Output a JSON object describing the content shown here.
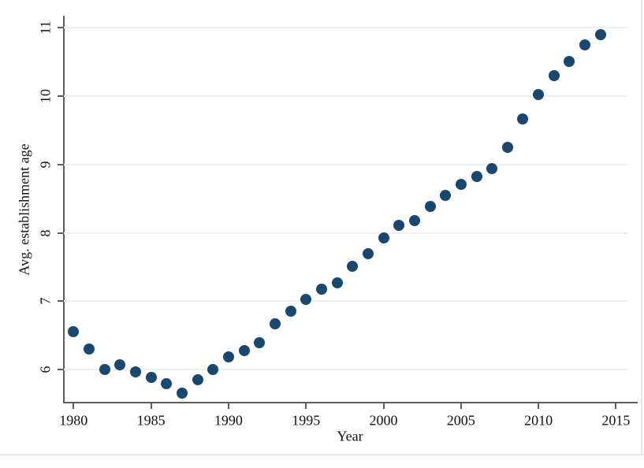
{
  "page": {
    "background": "#ffffff",
    "edge_border_color": "#e3eaec"
  },
  "chart_data": {
    "type": "scatter",
    "title": "",
    "xlabel": "Year",
    "ylabel": "Avg. establishment age",
    "legend": null,
    "grid": "horizontal",
    "marker": "filled-circle",
    "marker_color": "#1a476f",
    "grid_color": "#e9f2f2",
    "axis_color": "#5c5c5c",
    "xlim": [
      1979.4,
      2016.3
    ],
    "ylim": [
      5.5,
      11.2
    ],
    "x_ticks": [
      1980,
      1985,
      1990,
      1995,
      2000,
      2005,
      2010,
      2015
    ],
    "y_ticks": [
      6,
      7,
      8,
      9,
      10,
      11
    ],
    "x": [
      1980,
      1981,
      1982,
      1983,
      1984,
      1985,
      1986,
      1987,
      1988,
      1989,
      1990,
      1991,
      1992,
      1993,
      1994,
      1995,
      1996,
      1997,
      1998,
      1999,
      2000,
      2001,
      2002,
      2003,
      2004,
      2005,
      2006,
      2007,
      2008,
      2009,
      2010,
      2011,
      2012,
      2013,
      2014
    ],
    "y": [
      6.56,
      6.3,
      6.0,
      6.07,
      5.97,
      5.89,
      5.8,
      5.66,
      5.86,
      6.0,
      6.19,
      6.28,
      6.39,
      6.67,
      6.85,
      7.03,
      7.18,
      7.27,
      7.51,
      7.7,
      7.93,
      8.11,
      8.18,
      8.39,
      8.55,
      8.71,
      8.82,
      8.94,
      9.25,
      9.66,
      10.02,
      10.3,
      10.5,
      10.75,
      10.9
    ]
  }
}
